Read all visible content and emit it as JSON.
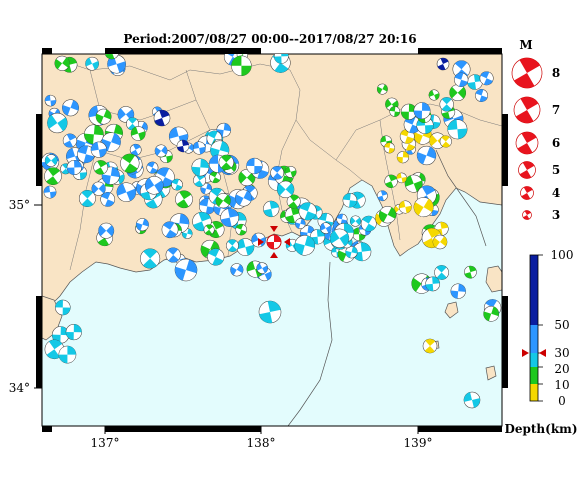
{
  "title": "Period:2007/08/27 00:00--2017/08/27 20:16",
  "axes": {
    "x_ticks": [
      "137°",
      "138°",
      "139°"
    ],
    "y_ticks": [
      "35°",
      "34°"
    ]
  },
  "magnitude_legend": {
    "title": "M",
    "labels": [
      "8",
      "7",
      "6",
      "5",
      "4",
      "3"
    ]
  },
  "depth_scale": {
    "labels": [
      "100",
      "50",
      "30",
      "20",
      "10",
      "0"
    ],
    "unit": "Depth(km)",
    "colors": {
      "0-10": "#f5d800",
      "10-20": "#1ec81e",
      "20-30": "#14c8e6",
      "30-50": "#2d96ff",
      "50-100": "#0a1ea0"
    }
  },
  "colors": {
    "sea": "#e3fcfd",
    "land": "#f9e4c5",
    "main_event": "#e8141e"
  }
}
